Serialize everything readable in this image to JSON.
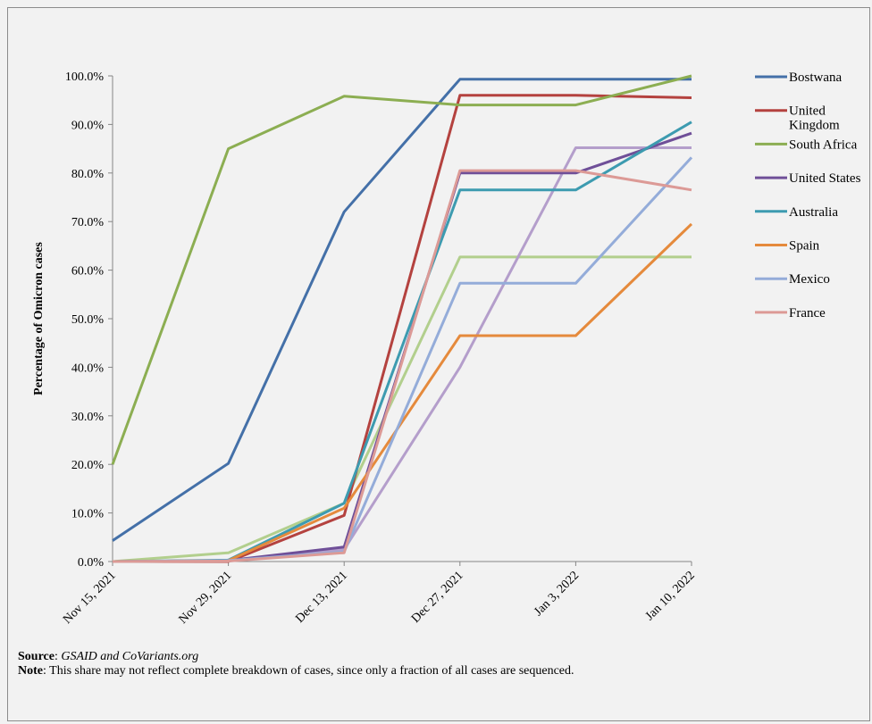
{
  "chart_data": {
    "type": "line",
    "ylabel": "Percentage of Omicron cases",
    "xlabel": "",
    "title": "",
    "categories": [
      "Nov 15, 2021",
      "Nov 29, 2021",
      "Dec 13, 2021",
      "Dec 27, 2021",
      "Jan 3, 2022",
      "Jan 10, 2022"
    ],
    "y_ticks": [
      "0.0%",
      "10.0%",
      "20.0%",
      "30.0%",
      "40.0%",
      "50.0%",
      "60.0%",
      "70.0%",
      "80.0%",
      "90.0%",
      "100.0%"
    ],
    "ylim": [
      0,
      100
    ],
    "grid": false,
    "legend_position": "right",
    "series": [
      {
        "name": "Bostwana",
        "color": "#4470a8",
        "values": [
          4.3,
          20.2,
          72.0,
          99.3,
          99.3,
          99.3
        ]
      },
      {
        "name": "United Kingdom",
        "color": "#b4423f",
        "values": [
          0.0,
          0.0,
          9.5,
          96.0,
          96.0,
          95.5
        ]
      },
      {
        "name": "South Africa",
        "color": "#8cae52",
        "values": [
          20.0,
          85.0,
          95.8,
          94.0,
          94.0,
          100.0
        ]
      },
      {
        "name": "United States",
        "color": "#6f4f98",
        "values": [
          0.0,
          0.2,
          3.0,
          80.0,
          80.0,
          88.2
        ]
      },
      {
        "name": "Australia",
        "color": "#3d9bb0",
        "values": [
          0.0,
          0.3,
          12.0,
          76.5,
          76.5,
          90.5
        ]
      },
      {
        "name": "Spain",
        "color": "#e58a3c",
        "values": [
          0.0,
          0.2,
          11.0,
          46.5,
          46.5,
          69.5
        ]
      },
      {
        "name": "Mexico",
        "color": "#94acd9",
        "values": [
          0.0,
          0.2,
          2.0,
          57.3,
          57.3,
          83.2
        ]
      },
      {
        "name": "France",
        "color": "#dc9a96",
        "values": [
          0.0,
          0.1,
          1.8,
          80.5,
          80.5,
          76.5
        ]
      },
      {
        "name": "",
        "color": "#b2cf8d",
        "values": [
          0.0,
          1.8,
          12.0,
          62.7,
          62.7,
          62.7
        ]
      },
      {
        "name": "",
        "color": "#b49ecb",
        "values": [
          0.0,
          0.1,
          2.5,
          40.0,
          85.2,
          85.2
        ]
      }
    ]
  },
  "notes": {
    "source_label": "Source",
    "source_text": "GSAID and CoVariants.org",
    "note_label": "Note",
    "note_text": ": This share may not reflect complete breakdown of cases, since only a fraction of all cases are sequenced."
  }
}
